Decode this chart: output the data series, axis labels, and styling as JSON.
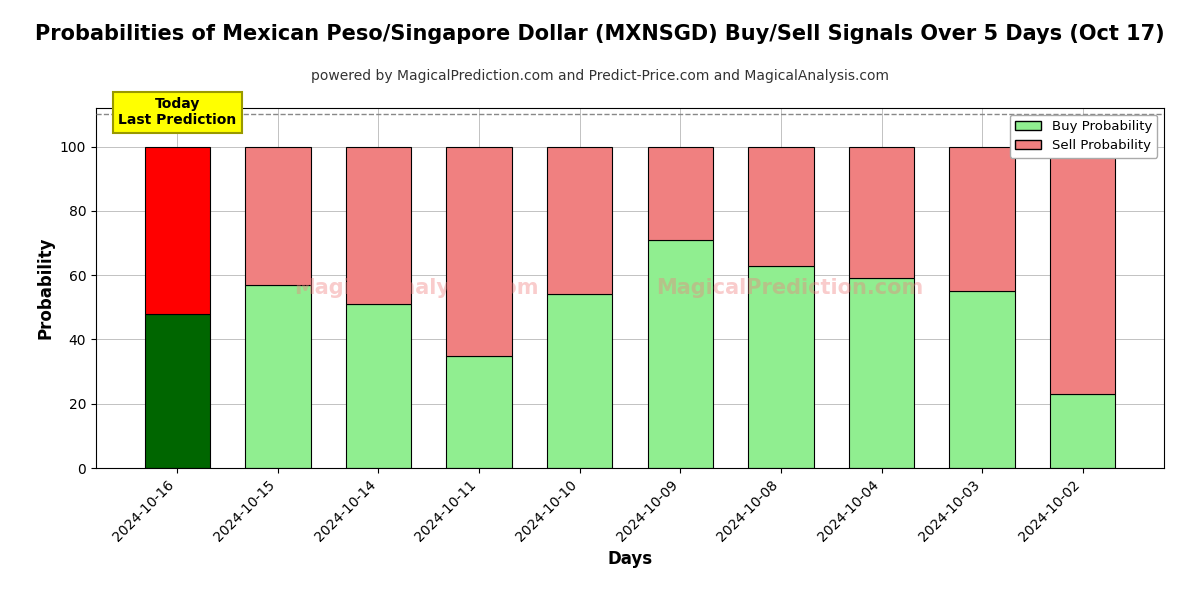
{
  "title": "Probabilities of Mexican Peso/Singapore Dollar (MXNSGD) Buy/Sell Signals Over 5 Days (Oct 17)",
  "subtitle": "powered by MagicalPrediction.com and Predict-Price.com and MagicalAnalysis.com",
  "xlabel": "Days",
  "ylabel": "Probability",
  "categories": [
    "2024-10-16",
    "2024-10-15",
    "2024-10-14",
    "2024-10-11",
    "2024-10-10",
    "2024-10-09",
    "2024-10-08",
    "2024-10-04",
    "2024-10-03",
    "2024-10-02"
  ],
  "buy_values": [
    48,
    57,
    51,
    35,
    54,
    71,
    63,
    59,
    55,
    23
  ],
  "sell_values": [
    52,
    43,
    49,
    65,
    46,
    29,
    37,
    41,
    45,
    77
  ],
  "today_buy_color": "#006600",
  "today_sell_color": "#FF0000",
  "buy_color": "#90EE90",
  "sell_color": "#F08080",
  "today_label": "Today\nLast Prediction",
  "today_label_bg": "#FFFF00",
  "legend_buy": "Buy Probability",
  "legend_sell": "Sell Probability",
  "ylim": [
    0,
    112
  ],
  "dashed_line_y": 110,
  "bar_edge_color": "#000000",
  "bar_linewidth": 0.8,
  "grid_color": "#aaaaaa",
  "title_fontsize": 15,
  "subtitle_fontsize": 10,
  "axis_label_fontsize": 12,
  "tick_fontsize": 10
}
